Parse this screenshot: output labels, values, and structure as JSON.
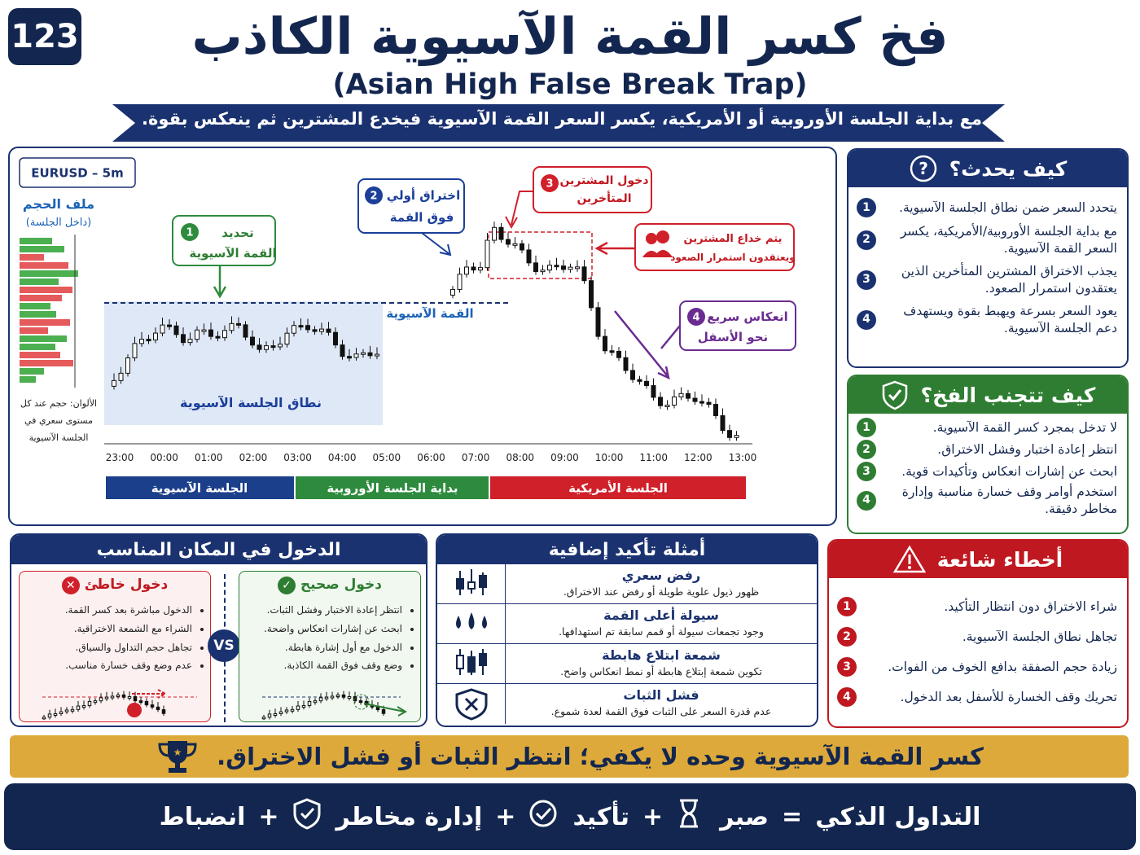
{
  "badge": "123",
  "header": {
    "title": "فخ كسر القمة الآسيوية الكاذب",
    "subtitle": "(Asian High False Break Trap)",
    "banner": "مع بداية الجلسة الأوروبية أو الأمريكية، يكسر السعر القمة الآسيوية فيخدع المشترين ثم ينعكس بقوة."
  },
  "chart": {
    "symbol": "EURUSD – 5m",
    "volume_title": "ملف الحجم",
    "volume_subtitle": "(داخل الجلسة)",
    "colors_note": [
      "الألوان: حجم عند كل",
      "مستوى سعري في",
      "الجلسة الآسيوية"
    ],
    "asian_range": "نطاق الجلسة الآسيوية",
    "asian_high": "القمة الآسيوية",
    "callouts": [
      {
        "number": "1",
        "lines": [
          "تحديد",
          "القمة الآسيوية"
        ]
      },
      {
        "number": "2",
        "lines": [
          "اختراق أولي",
          "فوق القمة"
        ]
      },
      {
        "number": "3",
        "lines": [
          "دخول المشترين",
          "المتأخرين"
        ]
      },
      {
        "number": "4",
        "lines": [
          "انعكاس سريع",
          "نحو الأسفل"
        ]
      }
    ],
    "trap_note": [
      "يتم خداع المشترين",
      "ويعتقدون استمرار الصعود"
    ],
    "times": [
      "23:00",
      "00:00",
      "01:00",
      "02:00",
      "03:00",
      "04:00",
      "05:00",
      "06:00",
      "07:00",
      "08:00",
      "09:00",
      "10:00",
      "11:00",
      "12:00",
      "13:00"
    ],
    "sessions": [
      "الجلسة الآسيوية",
      "بداية الجلسة الأوروبية",
      "الجلسة الأمريكية"
    ]
  },
  "how_it_happens": {
    "title": "كيف يحدث؟",
    "items": [
      {
        "number": "1",
        "text": "يتحدد السعر ضمن نطاق الجلسة الآسيوية."
      },
      {
        "number": "2",
        "text": "مع بداية الجلسة الأوروبية/الأمريكية، يكسر السعر القمة الآسيوية."
      },
      {
        "number": "3",
        "text": "يجذب الاختراق المشترين المتأخرين الذين يعتقدون استمرار الصعود."
      },
      {
        "number": "4",
        "text": "يعود السعر بسرعة ويهبط بقوة ويستهدف دعم الجلسة الآسيوية."
      }
    ]
  },
  "how_to_avoid": {
    "title": "كيف تتجنب الفخ؟",
    "items": [
      {
        "number": "1",
        "text": "لا تدخل بمجرد كسر القمة الآسيوية."
      },
      {
        "number": "2",
        "text": "انتظر إعادة اختبار وفشل الاختراق."
      },
      {
        "number": "3",
        "text": "ابحث عن إشارات انعكاس وتأكيدات قوية."
      },
      {
        "number": "4",
        "text": "استخدم أوامر وقف خسارة مناسبة وإدارة مخاطر دقيقة."
      }
    ]
  },
  "common_mistakes": {
    "title": "أخطاء شائعة",
    "items": [
      {
        "number": "1",
        "text": "شراء الاختراق دون انتظار التأكيد."
      },
      {
        "number": "2",
        "text": "تجاهل نطاق الجلسة الآسيوية."
      },
      {
        "number": "3",
        "text": "زيادة حجم الصفقة بدافع الخوف من الفوات."
      },
      {
        "number": "4",
        "text": "تحريك وقف الخسارة للأسفل بعد الدخول."
      }
    ]
  },
  "entry": {
    "title": "الدخول في المكان المناسب",
    "wrong": {
      "title": "دخول خاطئ",
      "bullets": [
        "الدخول مباشرة بعد كسر القمة.",
        "الشراء مع الشمعة الاختراقية.",
        "تجاهل حجم التداول والسياق.",
        "عدم وضع وقف خسارة مناسب."
      ]
    },
    "vs": "VS",
    "right": {
      "title": "دخول صحيح",
      "bullets": [
        "انتظر إعادة الاختبار وفشل الثبات.",
        "ابحث عن إشارات انعكاس واضحة.",
        "الدخول مع أول إشارة هابطة.",
        "وضع وقف فوق القمة الكاذبة."
      ]
    }
  },
  "confirmations": {
    "title": "أمثلة تأكيد إضافية",
    "items": [
      {
        "title": "رفض سعري",
        "text": "ظهور ذيول علوية طويلة أو رفض عند الاختراق."
      },
      {
        "title": "سيولة أعلى القمة",
        "text": "وجود تجمعات سيولة أو قمم سابقة تم استهدافها."
      },
      {
        "title": "شمعة ابتلاع هابطة",
        "text": "تكوين شمعة إبتلاع هابطة أو نمط انعكاس واضح."
      },
      {
        "title": "فشل الثبات",
        "text": "عدم قدرة السعر على الثبات فوق القمة لعدة شموع."
      }
    ]
  },
  "tip": "كسر القمة الآسيوية وحده لا يكفي؛ انتظر الثبات أو فشل الاختراق.",
  "footer": [
    "التداول الذكي",
    "=",
    "صبر",
    "+",
    "تأكيد",
    "+",
    "إدارة مخاطر",
    "+",
    "انضباط"
  ]
}
